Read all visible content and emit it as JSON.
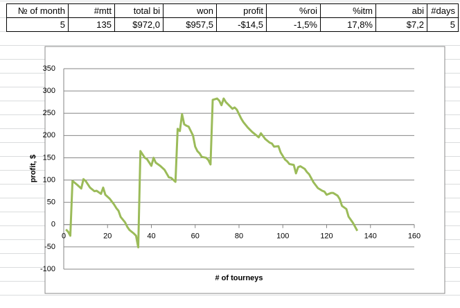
{
  "table": {
    "header": [
      "№ of month",
      "#mtt",
      "total bi",
      "won",
      "profit",
      "%roi",
      "%itm",
      "abi",
      "#days"
    ],
    "rows": [
      [
        "5",
        "135",
        "$972,0",
        "$957,5",
        "-$14,5",
        "-1,5%",
        "17,8%",
        "$7,2",
        "5"
      ]
    ]
  },
  "chart_data": {
    "type": "line",
    "ylabel": "profit, $",
    "xlabel": "# of tourneys",
    "color": "#9bbb59",
    "grid": true,
    "x": [
      1,
      2,
      3,
      4,
      6,
      8,
      9,
      10,
      12,
      14,
      15,
      17,
      18,
      19,
      21,
      23,
      24,
      25,
      26,
      28,
      29,
      30,
      32,
      33,
      34,
      35,
      37,
      38,
      40,
      41,
      42,
      44,
      46,
      48,
      49,
      51,
      52,
      53,
      54,
      55,
      56,
      57,
      59,
      60,
      61,
      62,
      63,
      65,
      66,
      67,
      68,
      70,
      71,
      72,
      73,
      74,
      76,
      77,
      78,
      79,
      81,
      82,
      84,
      86,
      88,
      89,
      90,
      92,
      94,
      95,
      96,
      98,
      99,
      101,
      102,
      103,
      105,
      106,
      107,
      108,
      110,
      111,
      112,
      114,
      116,
      118,
      119,
      120,
      122,
      123,
      125,
      126,
      127,
      129,
      130,
      132,
      134
    ],
    "values": [
      -11,
      -16,
      -25,
      98,
      90,
      81,
      102,
      98,
      83,
      75,
      76,
      69,
      83,
      67,
      58,
      45,
      37,
      31,
      17,
      5,
      -5,
      -12,
      -20,
      -25,
      -51,
      165,
      150,
      147,
      132,
      150,
      139,
      132,
      123,
      106,
      105,
      96,
      215,
      210,
      248,
      225,
      222,
      220,
      200,
      175,
      165,
      160,
      152,
      150,
      145,
      135,
      280,
      283,
      278,
      268,
      283,
      275,
      265,
      260,
      263,
      258,
      238,
      230,
      218,
      208,
      200,
      196,
      205,
      192,
      184,
      182,
      175,
      176,
      162,
      146,
      142,
      136,
      134,
      115,
      129,
      131,
      125,
      118,
      113,
      95,
      82,
      76,
      74,
      67,
      71,
      71,
      65,
      57,
      42,
      35,
      18,
      4,
      -14
    ],
    "xlim": [
      0,
      160
    ],
    "xticks": [
      0,
      20,
      40,
      60,
      80,
      100,
      120,
      140,
      160
    ],
    "ylim": [
      -100,
      350
    ],
    "yticks": [
      -100,
      -50,
      0,
      50,
      100,
      150,
      200,
      250,
      300,
      350
    ]
  }
}
